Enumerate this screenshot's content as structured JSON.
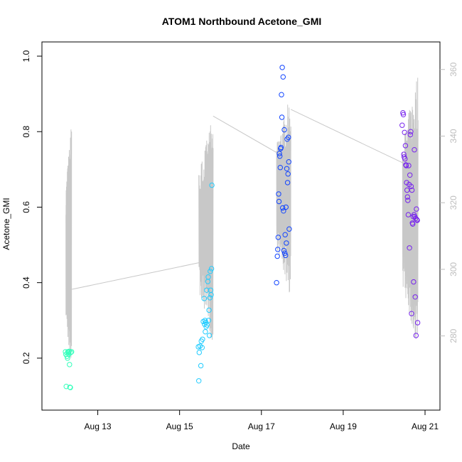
{
  "chart_data": {
    "type": "scatter",
    "title": "ATOM1 Northbound Acetone_GMI",
    "xlabel": "Date",
    "ylabel": "Acetone_GMI",
    "x_unit": "day of August 2016",
    "xlim": [
      12.0,
      21.0
    ],
    "ylim": [
      0.1,
      1.0
    ],
    "x_ticks": [
      {
        "value": 13,
        "label": "Aug 13"
      },
      {
        "value": 15,
        "label": "Aug 15"
      },
      {
        "value": 17,
        "label": "Aug 17"
      },
      {
        "value": 19,
        "label": "Aug 19"
      },
      {
        "value": 21,
        "label": "Aug 21"
      }
    ],
    "y_ticks": [
      0.2,
      0.4,
      0.6,
      0.8,
      1.0
    ],
    "y2lim": [
      262,
      364
    ],
    "y2_ticks": [
      280,
      300,
      320,
      340,
      360
    ],
    "grid": false,
    "colors": {
      "flight1": "#33ffbb",
      "flight2": "#22ccff",
      "flight3": "#1144ff",
      "flight4": "#7722ee",
      "secondary_line": "#c8c8c8",
      "secondary_axis": "#bdbdbd"
    },
    "series": [
      {
        "color": "#33ffbb",
        "points": [
          [
            12.21,
            0.217
          ],
          [
            12.22,
            0.21
          ],
          [
            12.23,
            0.125
          ],
          [
            12.25,
            0.205
          ],
          [
            12.26,
            0.2
          ],
          [
            12.27,
            0.217
          ],
          [
            12.28,
            0.215
          ],
          [
            12.29,
            0.21
          ],
          [
            12.3,
            0.218
          ],
          [
            12.31,
            0.183
          ],
          [
            12.32,
            0.123
          ],
          [
            12.33,
            0.122
          ],
          [
            12.34,
            0.215
          ],
          [
            12.36,
            0.217
          ]
        ]
      },
      {
        "color": "#22ccff",
        "points": [
          [
            15.46,
            0.23
          ],
          [
            15.47,
            0.14
          ],
          [
            15.48,
            0.215
          ],
          [
            15.5,
            0.232
          ],
          [
            15.52,
            0.18
          ],
          [
            15.53,
            0.245
          ],
          [
            15.55,
            0.228
          ],
          [
            15.56,
            0.25
          ],
          [
            15.58,
            0.297
          ],
          [
            15.6,
            0.358
          ],
          [
            15.61,
            0.29
          ],
          [
            15.62,
            0.3
          ],
          [
            15.63,
            0.27
          ],
          [
            15.64,
            0.295
          ],
          [
            15.65,
            0.283
          ],
          [
            15.66,
            0.38
          ],
          [
            15.67,
            0.288
          ],
          [
            15.69,
            0.403
          ],
          [
            15.7,
            0.415
          ],
          [
            15.71,
            0.3
          ],
          [
            15.72,
            0.327
          ],
          [
            15.73,
            0.26
          ],
          [
            15.74,
            0.36
          ],
          [
            15.75,
            0.43
          ],
          [
            15.76,
            0.38
          ],
          [
            15.77,
            0.368
          ],
          [
            15.78,
            0.437
          ],
          [
            15.79,
            0.658
          ]
        ]
      },
      {
        "color": "#1144ff",
        "points": [
          [
            17.37,
            0.4
          ],
          [
            17.39,
            0.47
          ],
          [
            17.4,
            0.488
          ],
          [
            17.41,
            0.52
          ],
          [
            17.42,
            0.635
          ],
          [
            17.43,
            0.615
          ],
          [
            17.44,
            0.742
          ],
          [
            17.45,
            0.735
          ],
          [
            17.46,
            0.705
          ],
          [
            17.47,
            0.755
          ],
          [
            17.48,
            0.758
          ],
          [
            17.49,
            0.898
          ],
          [
            17.5,
            0.838
          ],
          [
            17.51,
            0.97
          ],
          [
            17.52,
            0.598
          ],
          [
            17.53,
            0.945
          ],
          [
            17.54,
            0.59
          ],
          [
            17.55,
            0.485
          ],
          [
            17.56,
            0.805
          ],
          [
            17.57,
            0.478
          ],
          [
            17.58,
            0.527
          ],
          [
            17.59,
            0.472
          ],
          [
            17.6,
            0.6
          ],
          [
            17.61,
            0.505
          ],
          [
            17.62,
            0.702
          ],
          [
            17.63,
            0.78
          ],
          [
            17.64,
            0.665
          ],
          [
            17.65,
            0.688
          ],
          [
            17.66,
            0.785
          ],
          [
            17.67,
            0.72
          ],
          [
            17.68,
            0.542
          ]
        ]
      },
      {
        "color": "#7722ee",
        "points": [
          [
            20.44,
            0.817
          ],
          [
            20.46,
            0.85
          ],
          [
            20.47,
            0.845
          ],
          [
            20.48,
            0.74
          ],
          [
            20.49,
            0.733
          ],
          [
            20.5,
            0.798
          ],
          [
            20.51,
            0.728
          ],
          [
            20.52,
            0.763
          ],
          [
            20.53,
            0.712
          ],
          [
            20.54,
            0.71
          ],
          [
            20.55,
            0.665
          ],
          [
            20.56,
            0.645
          ],
          [
            20.57,
            0.627
          ],
          [
            20.58,
            0.618
          ],
          [
            20.59,
            0.58
          ],
          [
            20.6,
            0.71
          ],
          [
            20.61,
            0.66
          ],
          [
            20.62,
            0.492
          ],
          [
            20.63,
            0.685
          ],
          [
            20.64,
            0.792
          ],
          [
            20.65,
            0.8
          ],
          [
            20.66,
            0.655
          ],
          [
            20.67,
            0.318
          ],
          [
            20.68,
            0.645
          ],
          [
            20.69,
            0.558
          ],
          [
            20.7,
            0.555
          ],
          [
            20.71,
            0.575
          ],
          [
            20.72,
            0.402
          ],
          [
            20.73,
            0.58
          ],
          [
            20.74,
            0.752
          ],
          [
            20.75,
            0.575
          ],
          [
            20.76,
            0.362
          ],
          [
            20.77,
            0.57
          ],
          [
            20.78,
            0.26
          ],
          [
            20.79,
            0.595
          ],
          [
            20.8,
            0.567
          ],
          [
            20.81,
            0.565
          ],
          [
            20.82,
            0.294
          ]
        ]
      }
    ],
    "secondary_line_ranges": [
      {
        "x_start": 12.22,
        "x_end": 12.36,
        "y_min": 266,
        "y_max": 345
      },
      {
        "x_start": 15.47,
        "x_end": 15.82,
        "y_min": 276,
        "y_max": 347
      },
      {
        "x_start": 17.37,
        "x_end": 17.72,
        "y_min": 291,
        "y_max": 353
      },
      {
        "x_start": 20.45,
        "x_end": 20.83,
        "y_min": 274,
        "y_max": 360
      }
    ],
    "secondary_line_transits": [
      [
        [
          12.37,
          294
        ],
        [
          15.48,
          302
        ]
      ],
      [
        [
          15.82,
          346
        ],
        [
          17.38,
          335
        ]
      ],
      [
        [
          17.72,
          348
        ],
        [
          20.45,
          332
        ]
      ]
    ]
  }
}
